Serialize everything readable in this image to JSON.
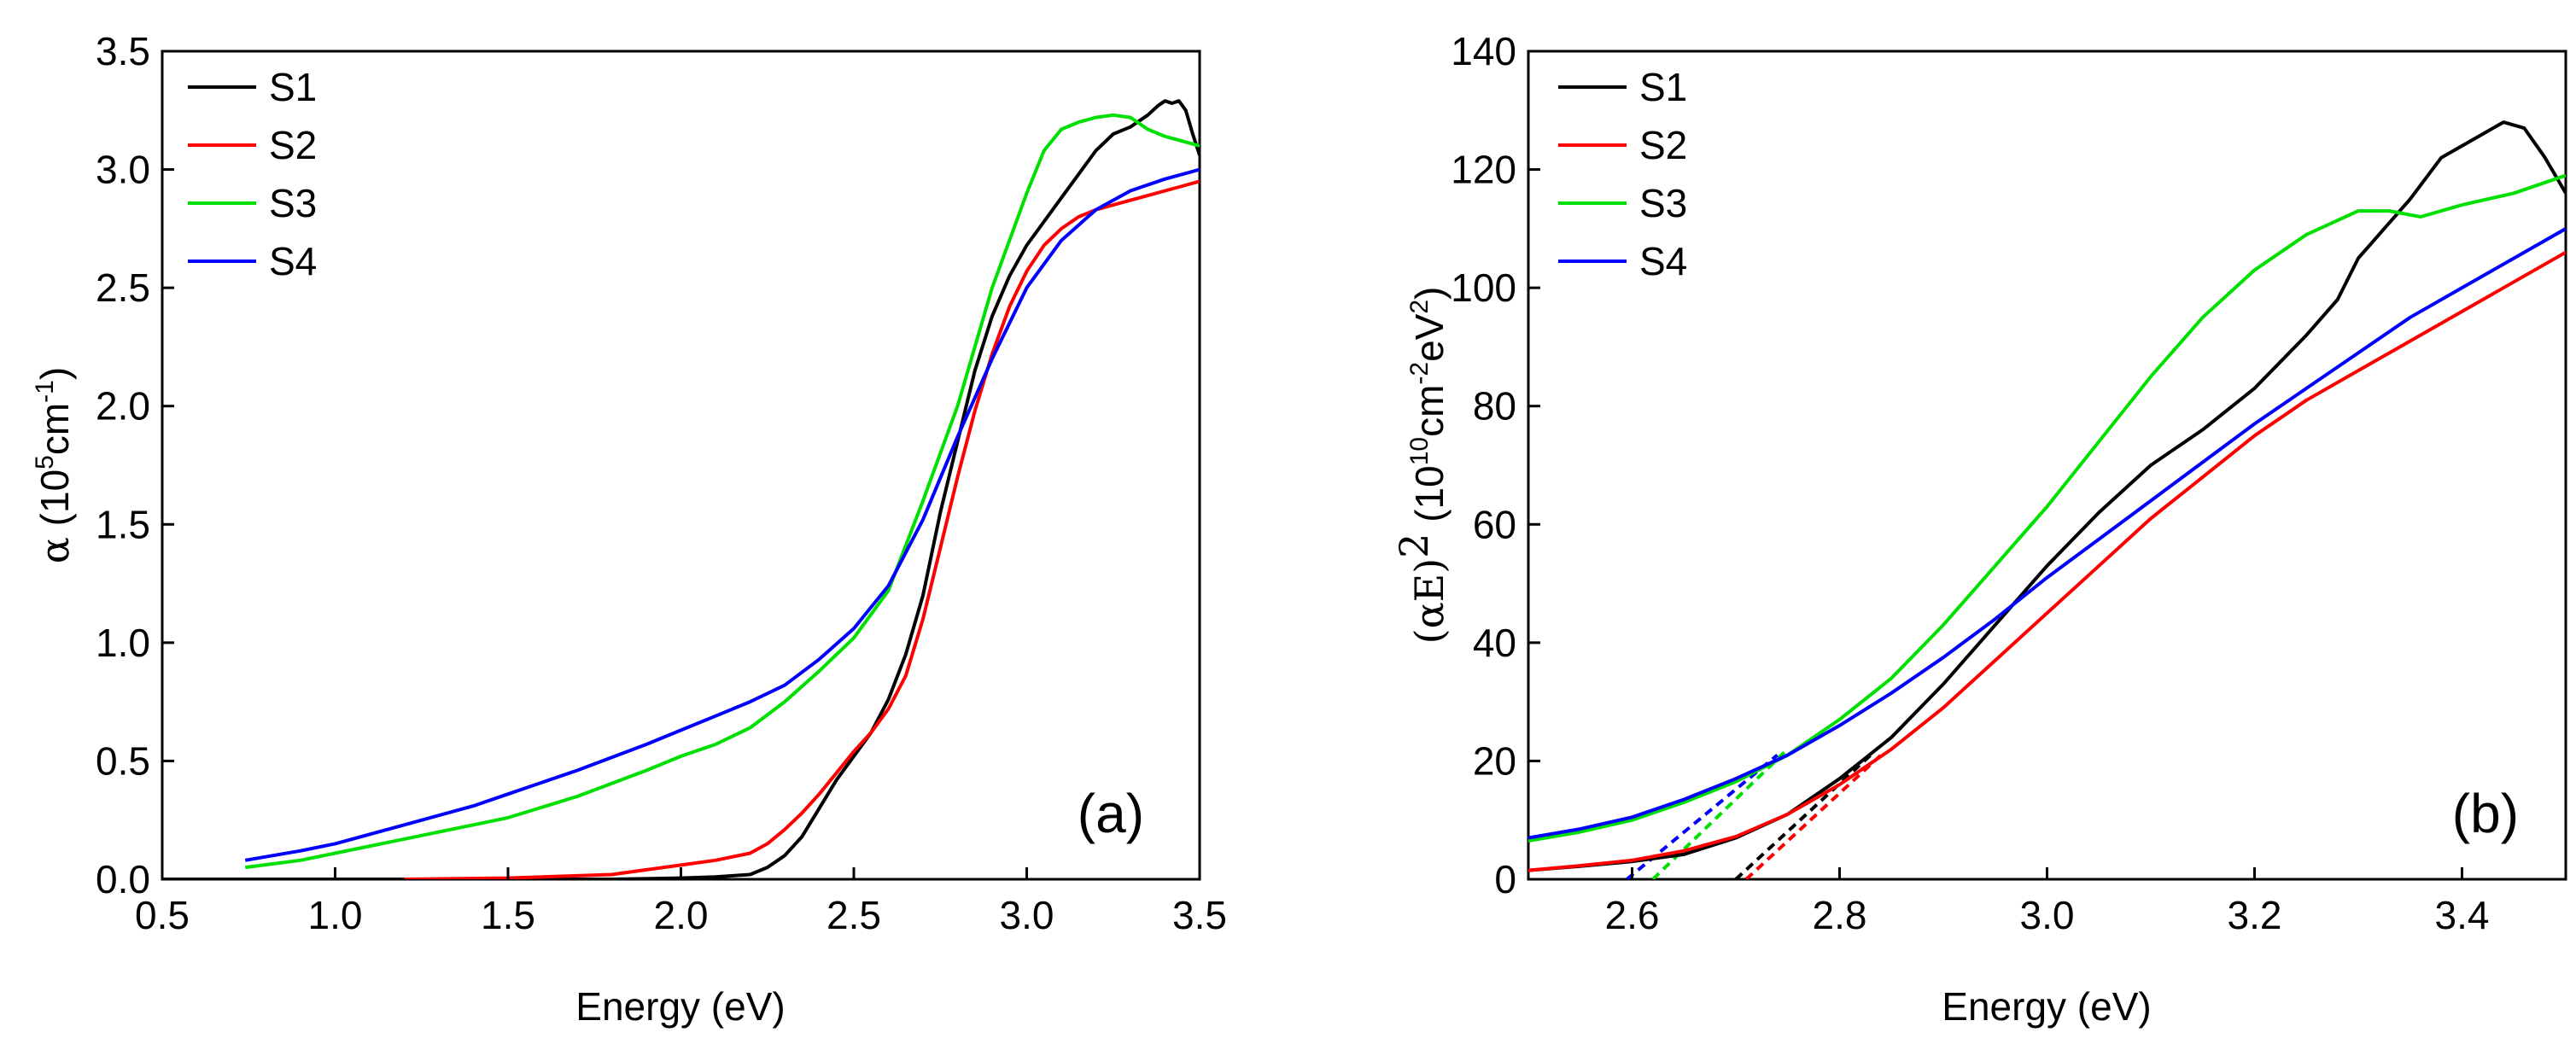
{
  "chart_data": [
    {
      "panel": "a",
      "type": "line",
      "panel_label": "(a)",
      "xlabel": "Energy (eV)",
      "ylabel": {
        "symbol": "α",
        "open": " (10",
        "exp": "5",
        "unit": "cm",
        "unit_exp": "-1",
        "close": ")"
      },
      "xlim": [
        0.5,
        3.5
      ],
      "ylim": [
        0.0,
        3.5
      ],
      "x_ticks": [
        "0.5",
        "1.0",
        "1.5",
        "2.0",
        "2.5",
        "3.0",
        "3.5"
      ],
      "y_ticks": [
        "0.0",
        "0.5",
        "1.0",
        "1.5",
        "2.0",
        "2.5",
        "3.0",
        "3.5"
      ],
      "legend_position": "top-left",
      "series": [
        {
          "name": "S1",
          "color": "#000000",
          "x": [
            0.5,
            1.0,
            1.5,
            1.8,
            2.0,
            2.1,
            2.2,
            2.25,
            2.3,
            2.35,
            2.4,
            2.45,
            2.5,
            2.55,
            2.6,
            2.65,
            2.7,
            2.75,
            2.8,
            2.85,
            2.9,
            2.95,
            3.0,
            3.05,
            3.1,
            3.15,
            3.2,
            3.25,
            3.3,
            3.35,
            3.38,
            3.4,
            3.42,
            3.44,
            3.46,
            3.48,
            3.5
          ],
          "y": [
            0.0,
            0.0,
            0.0,
            0.0,
            0.005,
            0.01,
            0.02,
            0.05,
            0.1,
            0.18,
            0.3,
            0.42,
            0.52,
            0.62,
            0.76,
            0.95,
            1.2,
            1.55,
            1.85,
            2.15,
            2.38,
            2.55,
            2.68,
            2.78,
            2.88,
            2.98,
            3.08,
            3.15,
            3.18,
            3.23,
            3.27,
            3.29,
            3.28,
            3.29,
            3.25,
            3.15,
            3.06
          ]
        },
        {
          "name": "S2",
          "color": "#ff0000",
          "x": [
            1.2,
            1.5,
            1.8,
            1.9,
            2.0,
            2.1,
            2.2,
            2.25,
            2.3,
            2.35,
            2.4,
            2.45,
            2.5,
            2.55,
            2.6,
            2.65,
            2.7,
            2.75,
            2.8,
            2.85,
            2.9,
            2.95,
            3.0,
            3.05,
            3.1,
            3.15,
            3.2,
            3.25,
            3.3,
            3.35,
            3.4,
            3.45,
            3.5
          ],
          "y": [
            0.0,
            0.005,
            0.02,
            0.04,
            0.06,
            0.08,
            0.11,
            0.15,
            0.21,
            0.28,
            0.36,
            0.45,
            0.54,
            0.62,
            0.72,
            0.86,
            1.1,
            1.4,
            1.7,
            1.98,
            2.22,
            2.42,
            2.57,
            2.68,
            2.75,
            2.8,
            2.83,
            2.85,
            2.87,
            2.89,
            2.91,
            2.93,
            2.95
          ]
        },
        {
          "name": "S3",
          "color": "#00e000",
          "x": [
            0.74,
            0.9,
            1.0,
            1.2,
            1.4,
            1.5,
            1.7,
            1.9,
            2.0,
            2.1,
            2.2,
            2.3,
            2.4,
            2.5,
            2.6,
            2.7,
            2.8,
            2.9,
            3.0,
            3.05,
            3.1,
            3.15,
            3.2,
            3.25,
            3.3,
            3.35,
            3.4,
            3.45,
            3.5
          ],
          "y": [
            0.05,
            0.08,
            0.11,
            0.17,
            0.23,
            0.26,
            0.35,
            0.46,
            0.52,
            0.57,
            0.64,
            0.75,
            0.88,
            1.02,
            1.22,
            1.6,
            2.0,
            2.5,
            2.9,
            3.08,
            3.17,
            3.2,
            3.22,
            3.23,
            3.22,
            3.17,
            3.14,
            3.12,
            3.1
          ]
        },
        {
          "name": "S4",
          "color": "#0000ff",
          "x": [
            0.74,
            0.9,
            1.0,
            1.2,
            1.4,
            1.5,
            1.7,
            1.9,
            2.0,
            2.1,
            2.2,
            2.3,
            2.4,
            2.5,
            2.6,
            2.7,
            2.8,
            2.9,
            3.0,
            3.1,
            3.2,
            3.3,
            3.4,
            3.5
          ],
          "y": [
            0.08,
            0.12,
            0.15,
            0.23,
            0.31,
            0.36,
            0.46,
            0.57,
            0.63,
            0.69,
            0.75,
            0.82,
            0.93,
            1.06,
            1.24,
            1.52,
            1.87,
            2.2,
            2.5,
            2.7,
            2.83,
            2.91,
            2.96,
            3.0
          ]
        }
      ]
    },
    {
      "panel": "b",
      "type": "line",
      "panel_label": "(b)",
      "xlabel": "Energy (eV)",
      "ylabel": {
        "open": "(αE)",
        "sq": "2",
        "mid": " (10",
        "exp1": "10",
        "unit1": "cm",
        "exp2": "-2",
        "unit2": "eV",
        "exp3": "2",
        "close": ")"
      },
      "xlim": [
        2.5,
        3.5
      ],
      "ylim": [
        0,
        140
      ],
      "x_ticks": [
        "2.6",
        "2.8",
        "3.0",
        "3.2",
        "3.4"
      ],
      "y_ticks": [
        "0",
        "20",
        "40",
        "60",
        "80",
        "100",
        "120",
        "140"
      ],
      "legend_position": "top-left",
      "series": [
        {
          "name": "S1",
          "color": "#000000",
          "x": [
            2.5,
            2.55,
            2.6,
            2.65,
            2.7,
            2.75,
            2.8,
            2.85,
            2.9,
            2.95,
            3.0,
            3.05,
            3.1,
            3.15,
            3.2,
            3.25,
            3.28,
            3.3,
            3.32,
            3.35,
            3.38,
            3.4,
            3.42,
            3.44,
            3.46,
            3.48,
            3.5
          ],
          "y": [
            1.5,
            2.2,
            3.0,
            4.2,
            7.0,
            11.0,
            17.0,
            24.0,
            33.0,
            43.0,
            53.0,
            62.0,
            70.0,
            76.0,
            83.0,
            92.0,
            98.0,
            105.0,
            109.0,
            115.0,
            122.0,
            124.0,
            126.0,
            128.0,
            127.0,
            122.0,
            116.0
          ]
        },
        {
          "name": "S2",
          "color": "#ff0000",
          "x": [
            2.5,
            2.55,
            2.6,
            2.65,
            2.7,
            2.75,
            2.8,
            2.85,
            2.9,
            2.95,
            3.0,
            3.05,
            3.1,
            3.15,
            3.2,
            3.25,
            3.3,
            3.35,
            3.4,
            3.45,
            3.5
          ],
          "y": [
            1.5,
            2.3,
            3.2,
            4.8,
            7.2,
            11.0,
            16.0,
            22.0,
            29.0,
            37.0,
            45.0,
            53.0,
            61.0,
            68.0,
            75.0,
            81.0,
            86.0,
            91.0,
            96.0,
            101.0,
            106.0
          ]
        },
        {
          "name": "S3",
          "color": "#00e000",
          "x": [
            2.5,
            2.55,
            2.6,
            2.65,
            2.7,
            2.75,
            2.8,
            2.85,
            2.9,
            2.95,
            3.0,
            3.05,
            3.1,
            3.15,
            3.2,
            3.25,
            3.3,
            3.33,
            3.36,
            3.4,
            3.45,
            3.5
          ],
          "y": [
            6.5,
            8.0,
            10.0,
            13.0,
            16.5,
            21.0,
            27.0,
            34.0,
            43.0,
            53.0,
            63.0,
            74.0,
            85.0,
            95.0,
            103.0,
            109.0,
            113.0,
            113.0,
            112.0,
            114.0,
            116.0,
            119.0
          ]
        },
        {
          "name": "S4",
          "color": "#0000ff",
          "x": [
            2.5,
            2.55,
            2.6,
            2.65,
            2.7,
            2.75,
            2.8,
            2.85,
            2.9,
            2.95,
            3.0,
            3.05,
            3.1,
            3.15,
            3.2,
            3.25,
            3.3,
            3.35,
            3.4,
            3.45,
            3.5
          ],
          "y": [
            7.0,
            8.5,
            10.5,
            13.5,
            17.0,
            21.0,
            26.0,
            31.5,
            37.5,
            44.0,
            51.0,
            57.5,
            64.0,
            70.5,
            77.0,
            83.0,
            89.0,
            95.0,
            100.0,
            105.0,
            110.0
          ]
        }
      ],
      "fit_lines": [
        {
          "series": "S1",
          "color": "#000000",
          "x": [
            2.7,
            2.83
          ],
          "y": [
            0,
            21
          ]
        },
        {
          "series": "S2",
          "color": "#ff0000",
          "x": [
            2.71,
            2.84
          ],
          "y": [
            0,
            21
          ]
        },
        {
          "series": "S3",
          "color": "#00e000",
          "x": [
            2.62,
            2.75
          ],
          "y": [
            0,
            22
          ]
        },
        {
          "series": "S4",
          "color": "#0000ff",
          "x": [
            2.595,
            2.74
          ],
          "y": [
            0,
            21
          ]
        }
      ]
    }
  ]
}
